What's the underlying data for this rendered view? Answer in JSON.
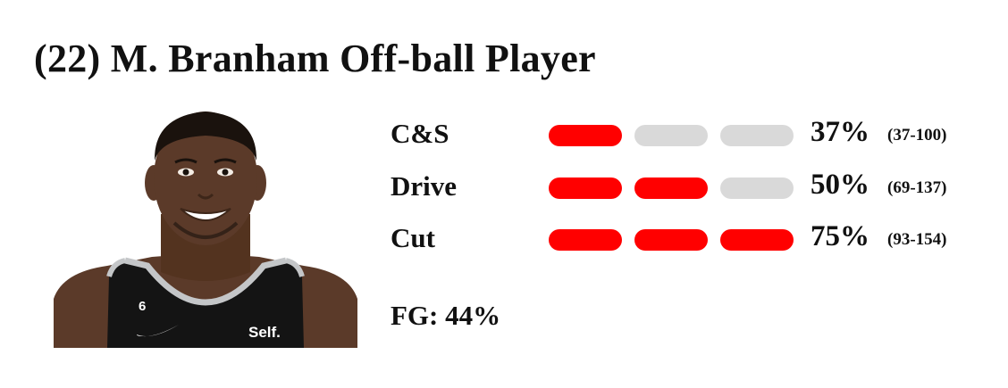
{
  "title": "(22) M. Branham Off-ball Player",
  "player_photo": {
    "icon": "player-headshot",
    "jersey_number": "6",
    "jersey_sponsor": "Self.",
    "colors": {
      "jersey": "#111111",
      "trim": "#c4c6c8",
      "skin": "#5b3a29",
      "accent": "#ff0000",
      "inactive": "#d9d9d9"
    }
  },
  "stats": [
    {
      "label": "C&S",
      "filled": 1,
      "total": 3,
      "percent": "37%",
      "range": "(37-100)"
    },
    {
      "label": "Drive",
      "filled": 2,
      "total": 3,
      "percent": "50%",
      "range": "(69-137)"
    },
    {
      "label": "Cut",
      "filled": 3,
      "total": 3,
      "percent": "75%",
      "range": "(93-154)"
    }
  ],
  "fg": "FG: 44%"
}
